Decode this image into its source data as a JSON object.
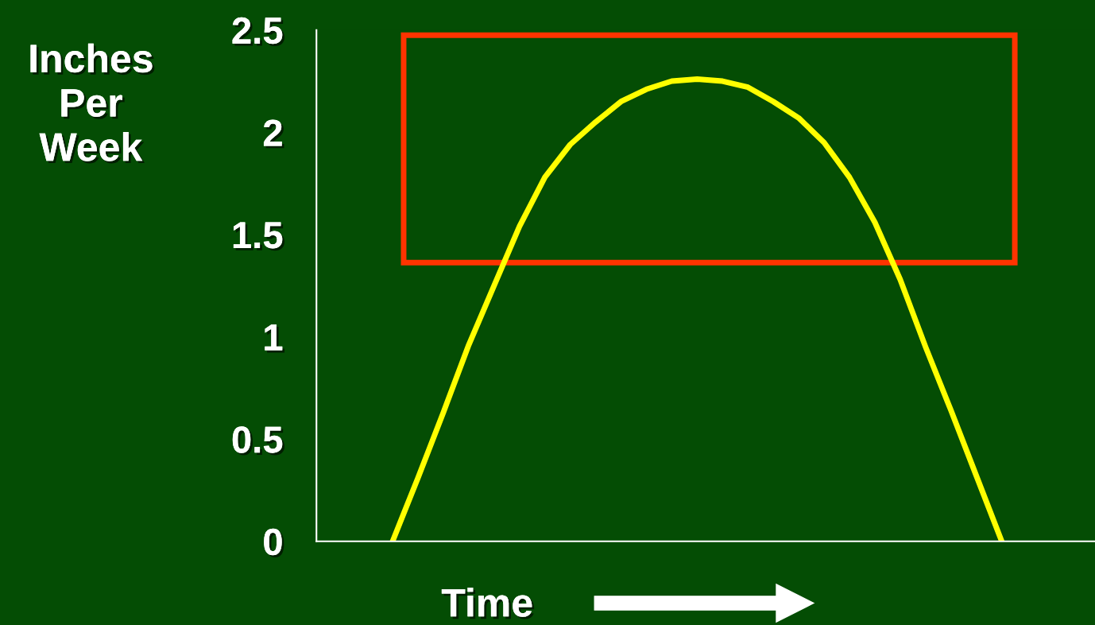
{
  "chart_data": {
    "type": "line",
    "ylabel": "Inches\nPer\nWeek",
    "xlabel": "Time",
    "categories": [
      null,
      null,
      null,
      null,
      null,
      null,
      null,
      null,
      null,
      null,
      null,
      null,
      null,
      null,
      null,
      null,
      null,
      null,
      null,
      null,
      null,
      null,
      null,
      null,
      null
    ],
    "series": [
      {
        "color": "#ffff00",
        "values": [
          0,
          0.31,
          0.63,
          0.96,
          1.25,
          1.54,
          1.78,
          1.94,
          2.05,
          2.15,
          2.21,
          2.25,
          2.26,
          2.25,
          2.22,
          2.15,
          2.07,
          1.95,
          1.78,
          1.56,
          1.28,
          0.95,
          0.64,
          0.32,
          0
        ]
      }
    ],
    "ylim": [
      0,
      2.5
    ],
    "yticks": [
      0,
      0.5,
      1,
      1.5,
      2,
      2.5
    ],
    "tick_labels": "y",
    "grid": false,
    "legend": false,
    "marker": "none",
    "line_style": "solid"
  }
}
